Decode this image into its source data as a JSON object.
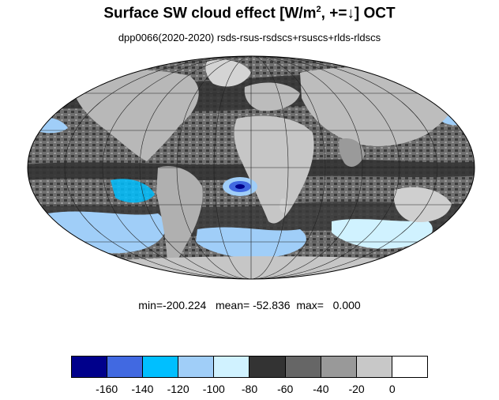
{
  "title": {
    "main": "Surface SW cloud effect [W/m",
    "sup": "2",
    "tail": ", +=↓]  OCT"
  },
  "subtitle": "dpp0066(2020-2020)  rsds-rsus-rsdscs+rsuscs+rlds-rldscs",
  "stats": {
    "min_label": "min=",
    "min": "-200.224",
    "mean_label": "mean=",
    "mean": "-52.836",
    "max_label": "max=",
    "max": "0.000"
  },
  "map": {
    "projection": "Mollweide",
    "land_color": "#c0c0c0",
    "ocean_color": "#7a7a7a",
    "coastline_color": "#4a4a4a",
    "gridline_color": "#2a2a2a"
  },
  "colorbar": {
    "colors": [
      "#00008b",
      "#4169e1",
      "#00bfff",
      "#a0cef8",
      "#d0f2ff",
      "#333333",
      "#666666",
      "#999999",
      "#c8c8c8",
      "#ffffff"
    ],
    "tick_labels": [
      "-160",
      "-140",
      "-120",
      "-100",
      "-80",
      "-60",
      "-40",
      "-20",
      "0"
    ]
  }
}
